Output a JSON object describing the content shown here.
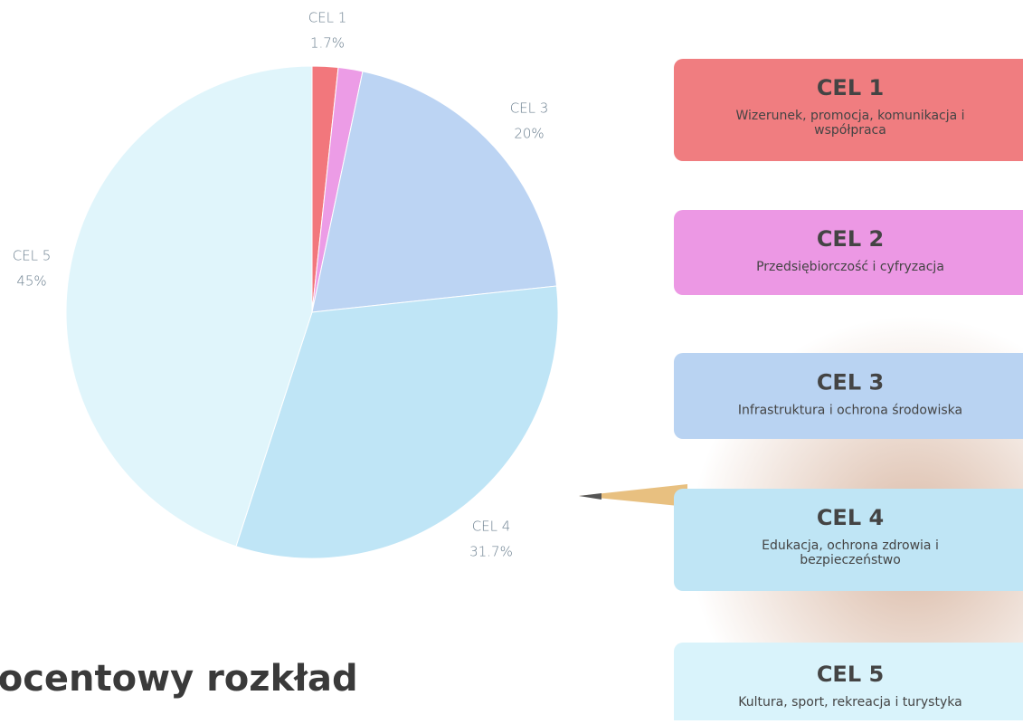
{
  "chart_data": {
    "type": "pie",
    "categories": [
      "CEL 1",
      null,
      "CEL 3",
      "CEL 4",
      "CEL 5"
    ],
    "values": [
      1.7,
      1.6,
      20,
      31.7,
      45
    ],
    "value_labels": [
      "1.7%",
      null,
      "20%",
      "31.7%",
      "45%"
    ],
    "colors": [
      "#f2777c",
      "#ec9ce6",
      "#bcd4f3",
      "#bfe5f6",
      "#e0f5fb"
    ],
    "title": "rocentowy rozkład"
  },
  "cards": [
    {
      "title": "CEL 1",
      "lines": [
        "Wizerunek, promocja, komunikacja i",
        "współpraca"
      ],
      "color": "#f07d80"
    },
    {
      "title": "CEL 2",
      "lines": [
        "Przedsiębiorczość i cyfryzacja"
      ],
      "color": "#ec98e4"
    },
    {
      "title": "CEL 3",
      "lines": [
        "Infrastruktura i ochrona środowiska"
      ],
      "color": "#b9d3f2"
    },
    {
      "title": "CEL 4",
      "lines": [
        "Edukacja, ochrona zdrowia i",
        "bezpieczeństwo"
      ],
      "color": "#bfe5f5"
    },
    {
      "title": "CEL 5",
      "lines": [
        "Kultura, sport, rekreacja i turystyka"
      ],
      "color": "#d9f3fb"
    }
  ]
}
